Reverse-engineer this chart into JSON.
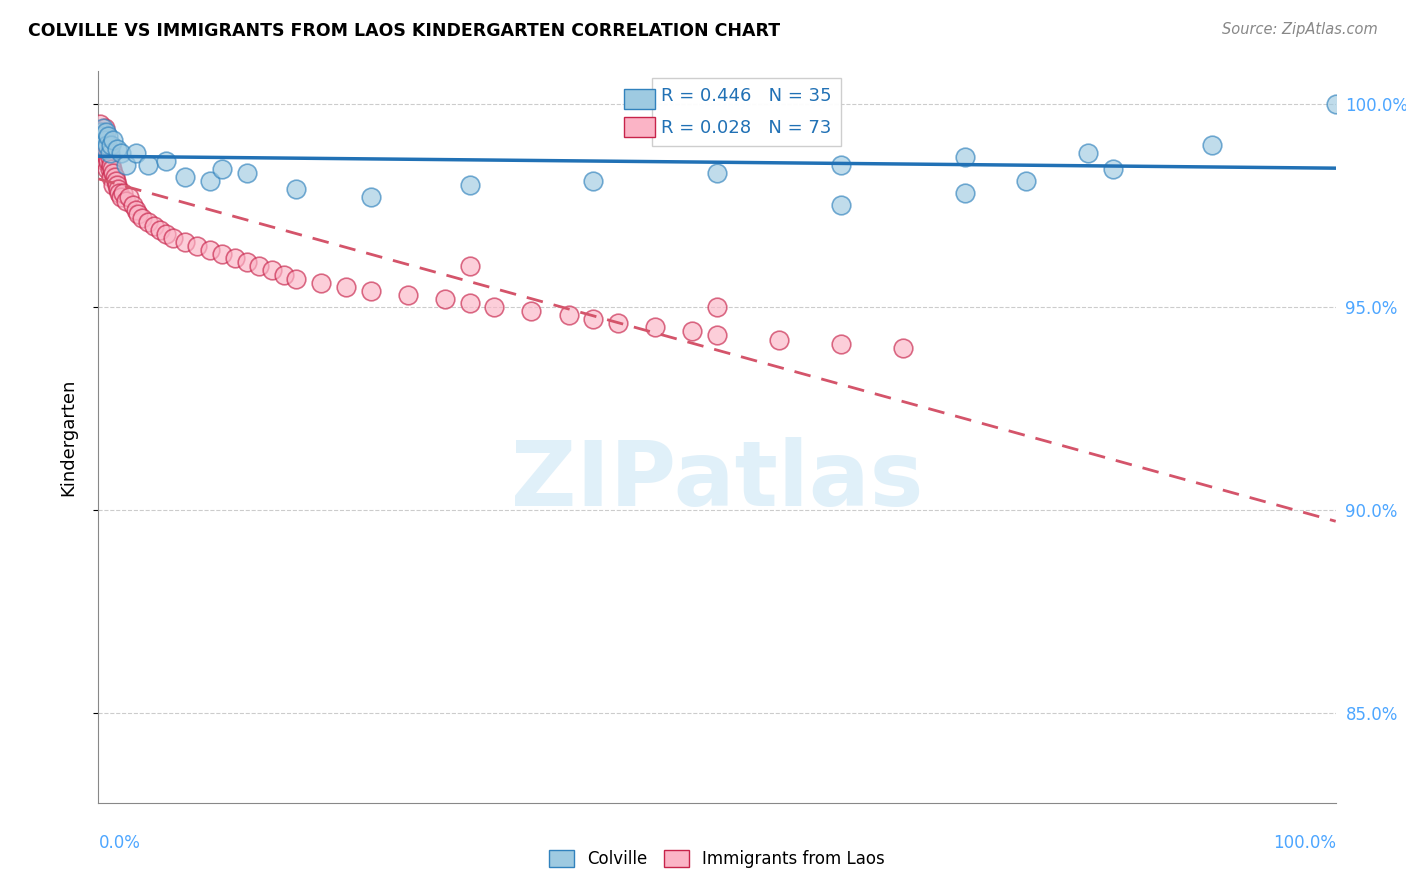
{
  "title": "COLVILLE VS IMMIGRANTS FROM LAOS KINDERGARTEN CORRELATION CHART",
  "source": "Source: ZipAtlas.com",
  "ylabel": "Kindergarten",
  "xmin": 0.0,
  "xmax": 1.0,
  "ymin": 0.828,
  "ymax": 1.008,
  "yticks_pct": [
    85,
    90,
    95,
    100
  ],
  "ytick_labels": [
    "85.0%",
    "90.0%",
    "95.0%",
    "100.0%"
  ],
  "colville_R": 0.446,
  "colville_N": 35,
  "laos_R": 0.028,
  "laos_N": 73,
  "colville_color": "#9ecae1",
  "colville_edge": "#3182bd",
  "laos_color": "#fbb4c6",
  "laos_edge": "#c7234a",
  "trend_colville_color": "#2171b5",
  "trend_laos_color": "#d4546a",
  "colville_x": [
    0.002,
    0.003,
    0.004,
    0.005,
    0.006,
    0.006,
    0.007,
    0.008,
    0.009,
    0.01,
    0.012,
    0.015,
    0.018,
    0.022,
    0.03,
    0.04,
    0.055,
    0.07,
    0.09,
    0.1,
    0.12,
    0.16,
    0.22,
    0.3,
    0.4,
    0.5,
    0.6,
    0.7,
    0.8,
    0.6,
    0.7,
    0.75,
    0.82,
    0.9,
    1.0
  ],
  "colville_y": [
    0.993,
    0.992,
    0.994,
    0.991,
    0.993,
    0.989,
    0.99,
    0.992,
    0.988,
    0.99,
    0.991,
    0.989,
    0.988,
    0.985,
    0.988,
    0.985,
    0.986,
    0.982,
    0.981,
    0.984,
    0.983,
    0.979,
    0.977,
    0.98,
    0.981,
    0.983,
    0.985,
    0.987,
    0.988,
    0.975,
    0.978,
    0.981,
    0.984,
    0.99,
    1.0
  ],
  "laos_x": [
    0.001,
    0.002,
    0.003,
    0.003,
    0.003,
    0.004,
    0.004,
    0.004,
    0.005,
    0.005,
    0.005,
    0.005,
    0.006,
    0.006,
    0.007,
    0.007,
    0.007,
    0.008,
    0.008,
    0.009,
    0.009,
    0.01,
    0.01,
    0.011,
    0.012,
    0.012,
    0.013,
    0.014,
    0.015,
    0.016,
    0.017,
    0.018,
    0.02,
    0.022,
    0.025,
    0.028,
    0.03,
    0.032,
    0.035,
    0.04,
    0.045,
    0.05,
    0.055,
    0.06,
    0.07,
    0.08,
    0.09,
    0.1,
    0.11,
    0.12,
    0.13,
    0.14,
    0.15,
    0.16,
    0.18,
    0.2,
    0.22,
    0.25,
    0.28,
    0.3,
    0.32,
    0.35,
    0.38,
    0.4,
    0.42,
    0.45,
    0.48,
    0.5,
    0.55,
    0.6,
    0.65,
    0.3,
    0.5
  ],
  "laos_y": [
    0.995,
    0.993,
    0.992,
    0.991,
    0.99,
    0.993,
    0.99,
    0.988,
    0.994,
    0.991,
    0.988,
    0.986,
    0.991,
    0.988,
    0.99,
    0.987,
    0.984,
    0.989,
    0.986,
    0.987,
    0.984,
    0.985,
    0.982,
    0.984,
    0.983,
    0.98,
    0.982,
    0.981,
    0.98,
    0.979,
    0.978,
    0.977,
    0.978,
    0.976,
    0.977,
    0.975,
    0.974,
    0.973,
    0.972,
    0.971,
    0.97,
    0.969,
    0.968,
    0.967,
    0.966,
    0.965,
    0.964,
    0.963,
    0.962,
    0.961,
    0.96,
    0.959,
    0.958,
    0.957,
    0.956,
    0.955,
    0.954,
    0.953,
    0.952,
    0.951,
    0.95,
    0.949,
    0.948,
    0.947,
    0.946,
    0.945,
    0.944,
    0.943,
    0.942,
    0.941,
    0.94,
    0.96,
    0.95
  ]
}
